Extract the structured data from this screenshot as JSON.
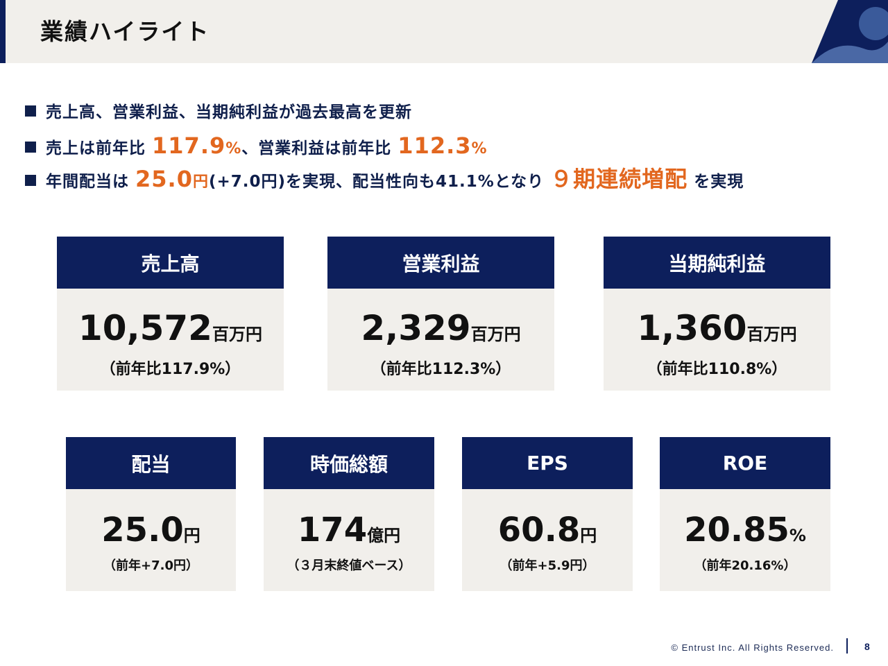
{
  "header": {
    "title": "業績ハイライト"
  },
  "bullets": {
    "b1": {
      "text": "売上高、営業利益、当期純利益が過去最高を更新"
    },
    "b2": {
      "t1": "売上は前年比",
      "v1": "117.9",
      "u1": "%",
      "t2": "、営業利益は前年比",
      "v2": "112.3",
      "u2": "%"
    },
    "b3": {
      "t1": "年間配当は",
      "v1": "25.0",
      "u1": "円",
      "t2": "(+7.0円)を実現、配当性向も41.1%となり",
      "v2": "９期連続増配",
      "t3": "を実現"
    }
  },
  "cards": {
    "sales": {
      "label": "売上高",
      "value": "10,572",
      "unit": "百万円",
      "sub": "（前年比117.9%）"
    },
    "op_profit": {
      "label": "営業利益",
      "value": "2,329",
      "unit": "百万円",
      "sub": "（前年比112.3%）"
    },
    "net_profit": {
      "label": "当期純利益",
      "value": "1,360",
      "unit": "百万円",
      "sub": "（前年比110.8%）"
    },
    "dividend": {
      "label": "配当",
      "value": "25.0",
      "unit": "円",
      "sub": "（前年+7.0円）"
    },
    "market_cap": {
      "label": "時価総額",
      "value": "174",
      "unit": "億円",
      "sub": "（３月末終値ベース）"
    },
    "eps": {
      "label": "EPS",
      "value": "60.8",
      "unit": "円",
      "sub": "（前年+5.9円）"
    },
    "roe": {
      "label": "ROE",
      "value": "20.85",
      "unit": "%",
      "sub": "（前年20.16%）"
    }
  },
  "footer": {
    "copyright": "© Entrust Inc. All Rights Reserved.",
    "page": "8"
  },
  "colors": {
    "navy": "#0d1f5c",
    "orange": "#e2671f",
    "beige": "#f1efeb"
  }
}
